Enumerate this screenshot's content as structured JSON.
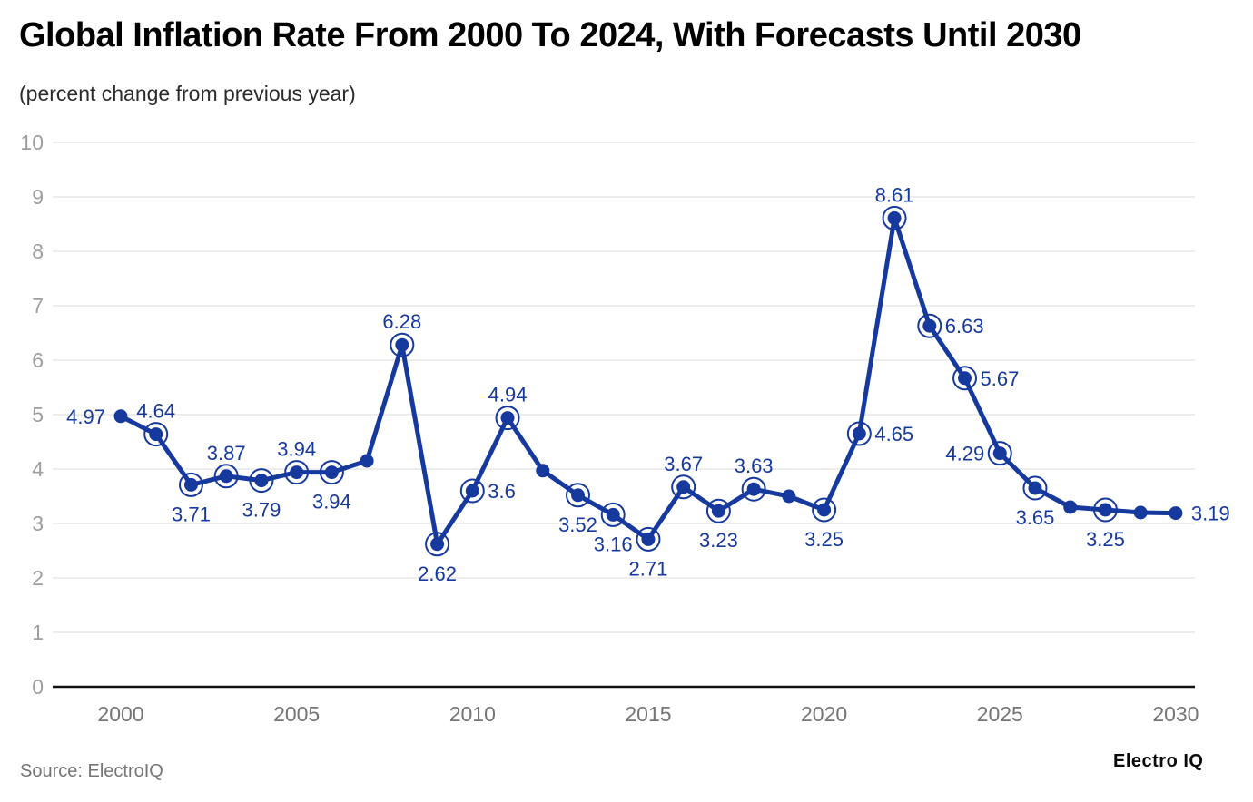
{
  "title": "Global Inflation Rate From 2000 To 2024, With Forecasts Until 2030",
  "subtitle": "(percent change from previous year)",
  "footer": {
    "source": "Source: ElectroIQ",
    "brand": "Electro IQ"
  },
  "chart_data": {
    "type": "line",
    "title": "Global Inflation Rate From 2000 To 2024, With Forecasts Until 2030",
    "xlabel": "",
    "ylabel": "percent change from previous year",
    "ylim": [
      0,
      10
    ],
    "yticks": [
      0,
      1,
      2,
      3,
      4,
      5,
      6,
      7,
      8,
      9,
      10
    ],
    "xticks": [
      2000,
      2005,
      2010,
      2015,
      2020,
      2025,
      2030
    ],
    "grid": true,
    "legend": "none",
    "colors": {
      "line": "#16399E",
      "point": "#16399E",
      "data_label": "#16399E",
      "grid": "#e7e7e7",
      "zero_axis": "#111111",
      "y_tick_label": "#9e9e9e",
      "x_tick_label": "#757575"
    },
    "points": [
      {
        "year": 2000,
        "value": 4.97,
        "label": "4.97",
        "ring": false,
        "pos": "left"
      },
      {
        "year": 2001,
        "value": 4.64,
        "label": "4.64",
        "ring": true,
        "pos": "top"
      },
      {
        "year": 2002,
        "value": 3.71,
        "label": "3.71",
        "ring": true,
        "pos": "bottom"
      },
      {
        "year": 2003,
        "value": 3.87,
        "label": "3.87",
        "ring": true,
        "pos": "top"
      },
      {
        "year": 2004,
        "value": 3.79,
        "label": "3.79",
        "ring": true,
        "pos": "bottom"
      },
      {
        "year": 2005,
        "value": 3.94,
        "label": "3.94",
        "ring": true,
        "pos": "top"
      },
      {
        "year": 2006,
        "value": 3.94,
        "label": "3.94",
        "ring": true,
        "pos": "bottom"
      },
      {
        "year": 2007,
        "value": 4.15,
        "label": null,
        "ring": false,
        "pos": null
      },
      {
        "year": 2008,
        "value": 6.28,
        "label": "6.28",
        "ring": true,
        "pos": "top"
      },
      {
        "year": 2009,
        "value": 2.62,
        "label": "2.62",
        "ring": true,
        "pos": "bottom"
      },
      {
        "year": 2010,
        "value": 3.6,
        "label": "3.6",
        "ring": true,
        "pos": "right"
      },
      {
        "year": 2011,
        "value": 4.94,
        "label": "4.94",
        "ring": true,
        "pos": "top"
      },
      {
        "year": 2012,
        "value": 3.97,
        "label": null,
        "ring": false,
        "pos": null
      },
      {
        "year": 2013,
        "value": 3.52,
        "label": "3.52",
        "ring": true,
        "pos": "bottom"
      },
      {
        "year": 2014,
        "value": 3.16,
        "label": "3.16",
        "ring": true,
        "pos": "bottom"
      },
      {
        "year": 2015,
        "value": 2.71,
        "label": "2.71",
        "ring": true,
        "pos": "bottom"
      },
      {
        "year": 2016,
        "value": 3.67,
        "label": "3.67",
        "ring": true,
        "pos": "top"
      },
      {
        "year": 2017,
        "value": 3.23,
        "label": "3.23",
        "ring": true,
        "pos": "bottom"
      },
      {
        "year": 2018,
        "value": 3.63,
        "label": "3.63",
        "ring": true,
        "pos": "top"
      },
      {
        "year": 2019,
        "value": 3.5,
        "label": null,
        "ring": false,
        "pos": null
      },
      {
        "year": 2020,
        "value": 3.25,
        "label": "3.25",
        "ring": true,
        "pos": "bottom"
      },
      {
        "year": 2021,
        "value": 4.65,
        "label": "4.65",
        "ring": true,
        "pos": "right"
      },
      {
        "year": 2022,
        "value": 8.61,
        "label": "8.61",
        "ring": true,
        "pos": "top"
      },
      {
        "year": 2023,
        "value": 6.63,
        "label": "6.63",
        "ring": true,
        "pos": "right"
      },
      {
        "year": 2024,
        "value": 5.67,
        "label": "5.67",
        "ring": true,
        "pos": "right"
      },
      {
        "year": 2025,
        "value": 4.29,
        "label": "4.29",
        "ring": true,
        "pos": "left"
      },
      {
        "year": 2026,
        "value": 3.65,
        "label": "3.65",
        "ring": true,
        "pos": "bottom"
      },
      {
        "year": 2027,
        "value": 3.3,
        "label": null,
        "ring": false,
        "pos": null
      },
      {
        "year": 2028,
        "value": 3.25,
        "label": "3.25",
        "ring": true,
        "pos": "bottom"
      },
      {
        "year": 2029,
        "value": 3.2,
        "label": null,
        "ring": false,
        "pos": null
      },
      {
        "year": 2030,
        "value": 3.19,
        "label": "3.19",
        "ring": false,
        "pos": "right"
      }
    ]
  }
}
